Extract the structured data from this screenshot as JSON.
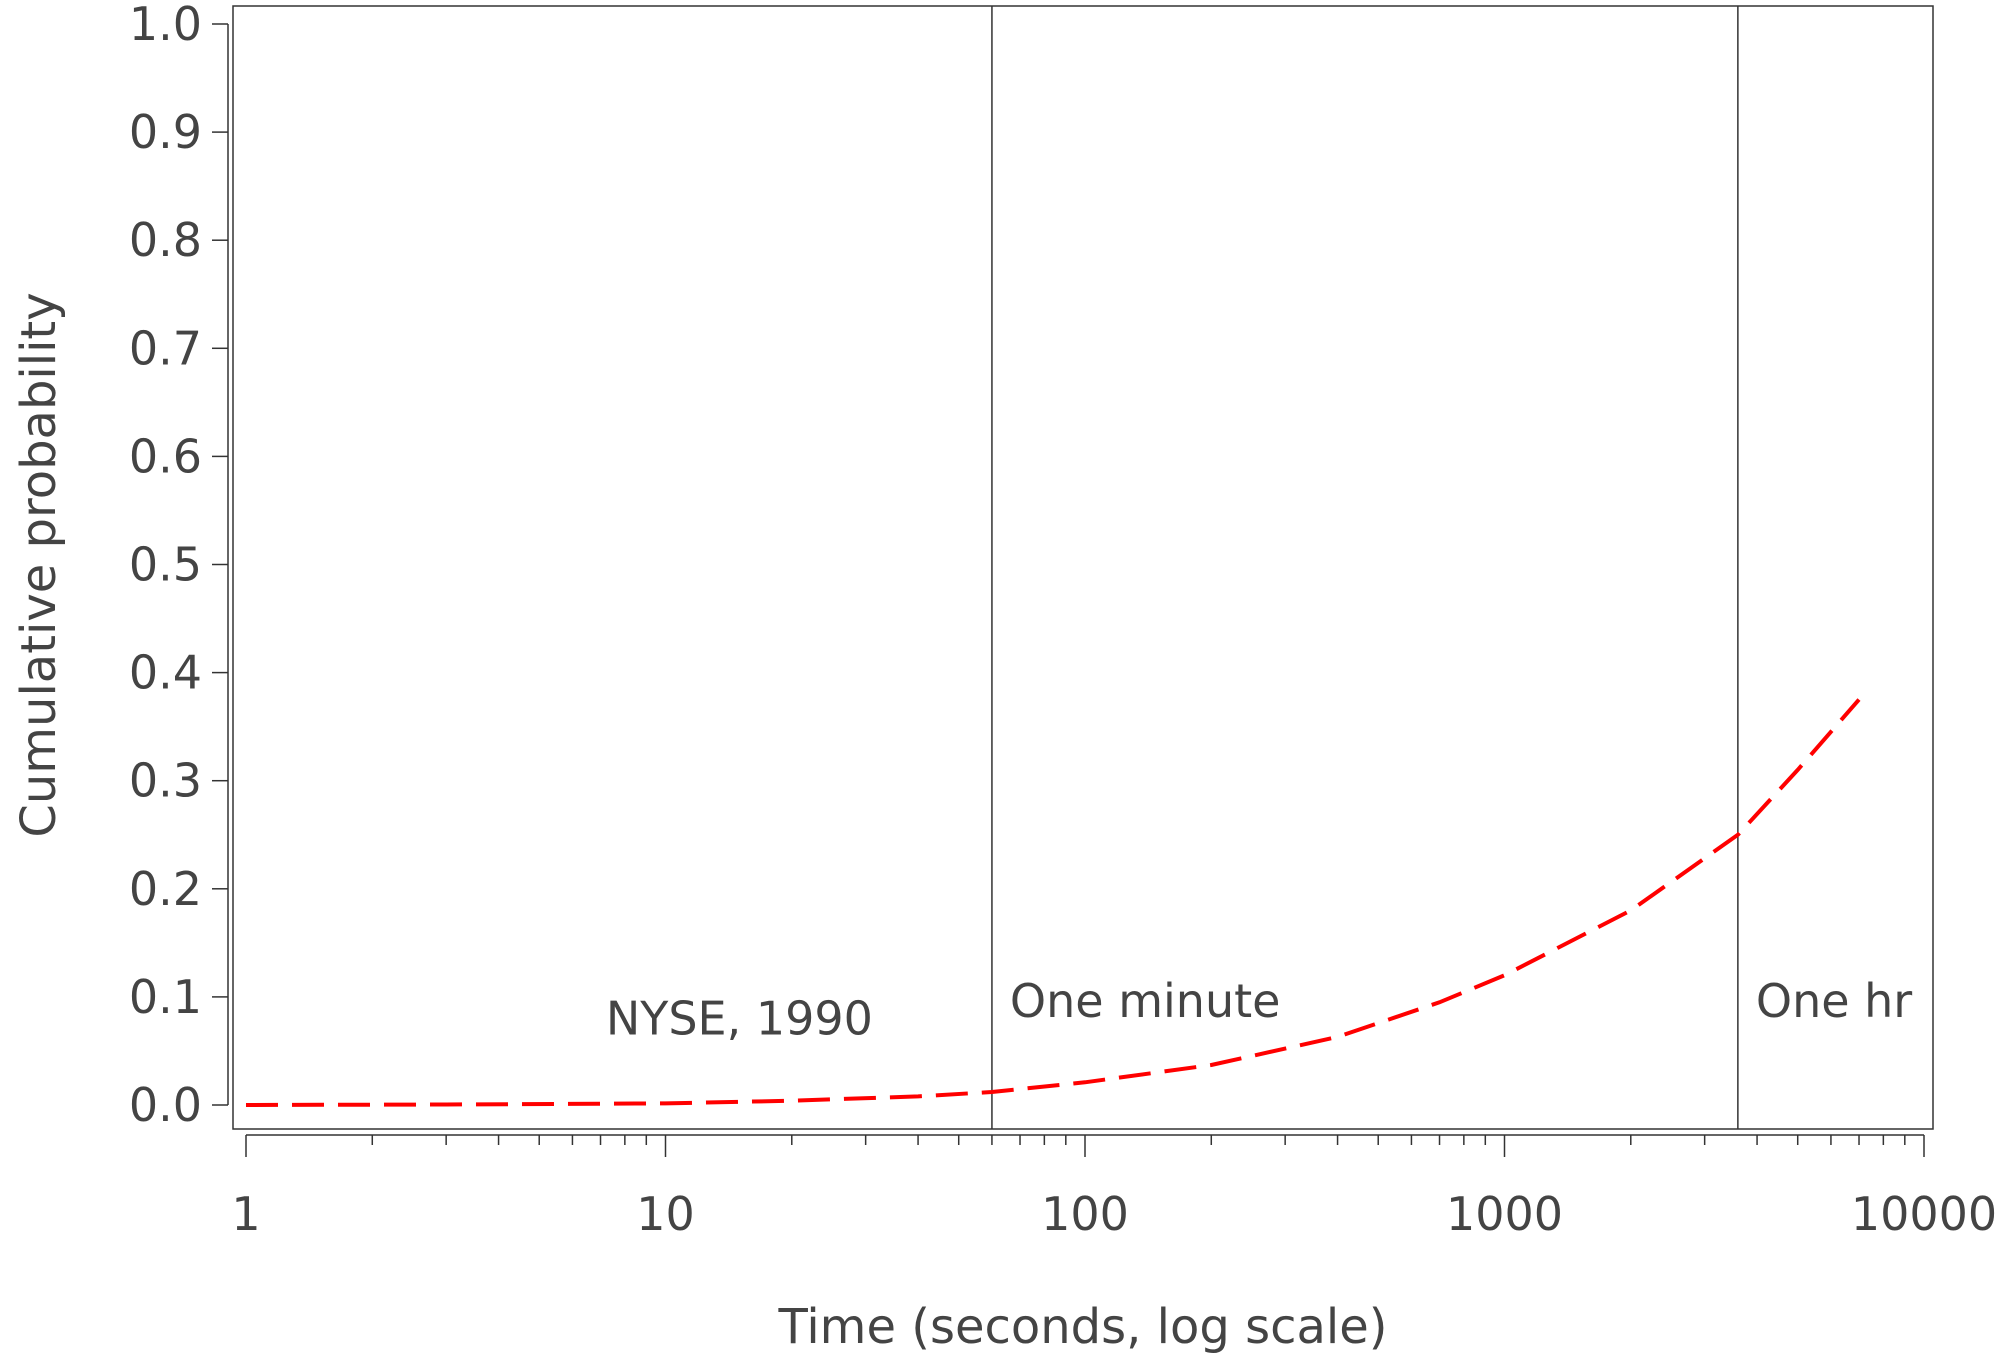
{
  "chart_data": {
    "type": "line",
    "title": "",
    "xlabel": "Time (seconds, log scale)",
    "ylabel": "Cumulative probability",
    "x_scale": "log",
    "xlim": [
      1,
      10000
    ],
    "ylim": [
      0,
      1.0
    ],
    "x_ticks": [
      {
        "value": 1,
        "label": "1"
      },
      {
        "value": 10,
        "label": "10"
      },
      {
        "value": 100,
        "label": "100"
      },
      {
        "value": 1000,
        "label": "1000"
      },
      {
        "value": 10000,
        "label": "10000"
      }
    ],
    "y_ticks": [
      {
        "value": 0.0,
        "label": "0.0"
      },
      {
        "value": 0.1,
        "label": "0.1"
      },
      {
        "value": 0.2,
        "label": "0.2"
      },
      {
        "value": 0.3,
        "label": "0.3"
      },
      {
        "value": 0.4,
        "label": "0.4"
      },
      {
        "value": 0.5,
        "label": "0.5"
      },
      {
        "value": 0.6,
        "label": "0.6"
      },
      {
        "value": 0.7,
        "label": "0.7"
      },
      {
        "value": 0.8,
        "label": "0.8"
      },
      {
        "value": 0.9,
        "label": "0.9"
      },
      {
        "value": 1.0,
        "label": "1.0"
      }
    ],
    "grid": false,
    "series": [
      {
        "color": "#ff0000",
        "style": "dashed",
        "points": [
          {
            "x": 1,
            "y": 0.0
          },
          {
            "x": 3,
            "y": 0.0005
          },
          {
            "x": 10,
            "y": 0.0015
          },
          {
            "x": 20,
            "y": 0.004
          },
          {
            "x": 40,
            "y": 0.008
          },
          {
            "x": 60,
            "y": 0.012
          },
          {
            "x": 100,
            "y": 0.021
          },
          {
            "x": 200,
            "y": 0.037
          },
          {
            "x": 400,
            "y": 0.063
          },
          {
            "x": 700,
            "y": 0.095
          },
          {
            "x": 1000,
            "y": 0.12
          },
          {
            "x": 2000,
            "y": 0.18
          },
          {
            "x": 3600,
            "y": 0.25
          },
          {
            "x": 5000,
            "y": 0.31
          },
          {
            "x": 7000,
            "y": 0.375
          }
        ]
      }
    ],
    "reference_lines": [
      {
        "x": 60,
        "label": "One minute"
      },
      {
        "x": 3600,
        "label": "One hr"
      }
    ],
    "annotations": [
      {
        "text": "NYSE, 1990",
        "x": 15,
        "y": 0.065
      }
    ]
  }
}
